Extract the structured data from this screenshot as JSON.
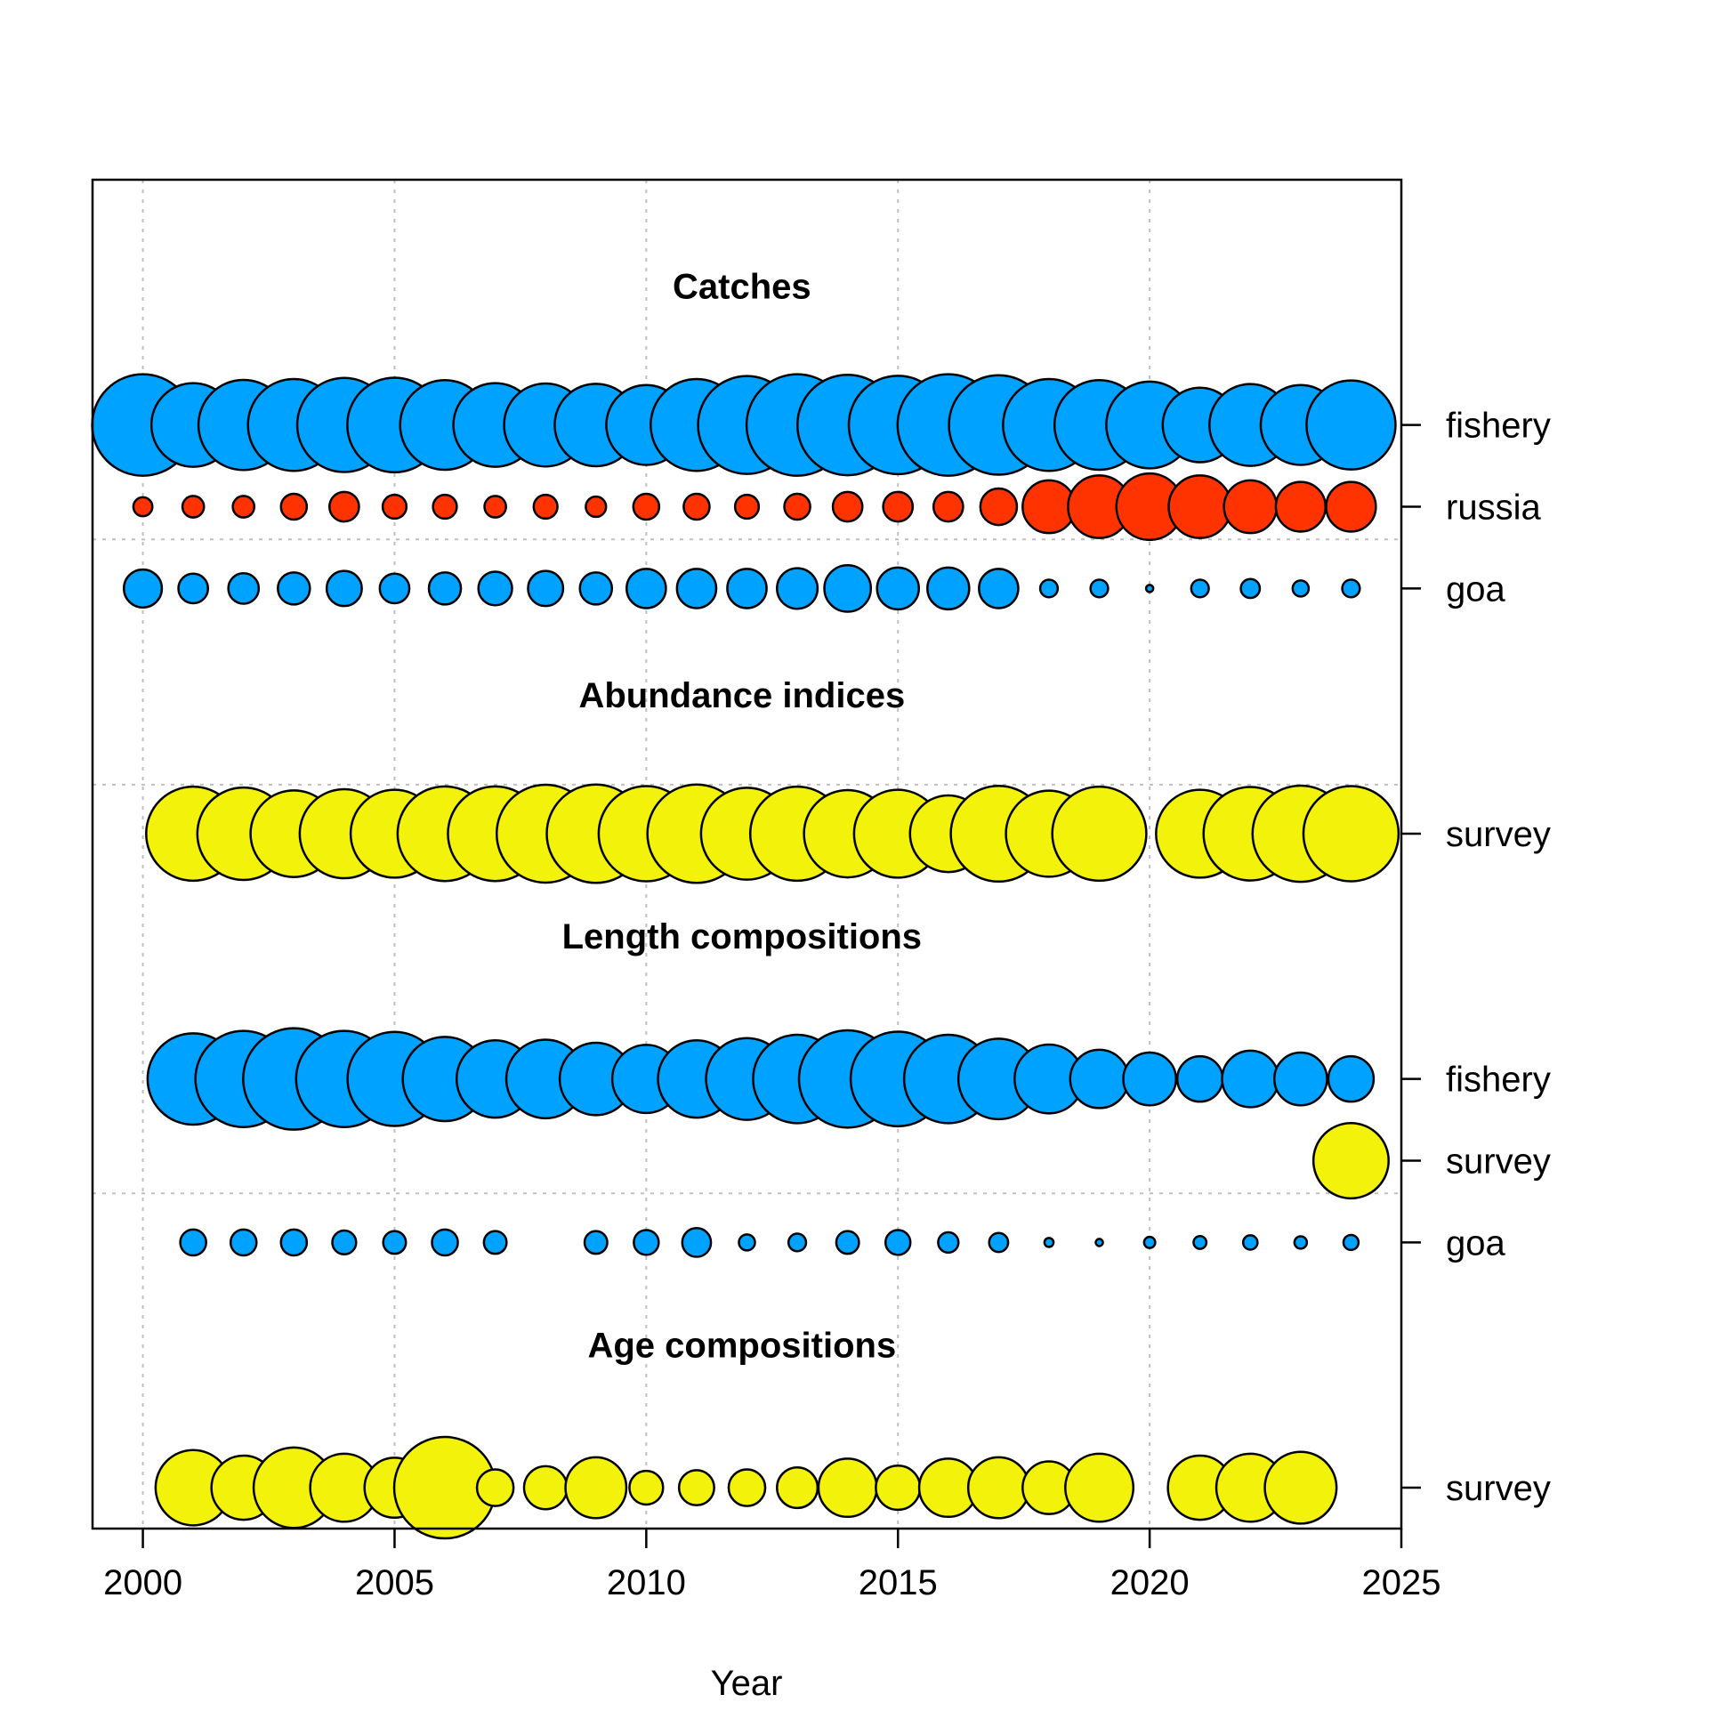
{
  "chart_data": {
    "type": "bubble",
    "xlabel": "Year",
    "xlim": [
      1999,
      2025
    ],
    "ylim": [
      0.5,
      17
    ],
    "xticks": [
      2000,
      2005,
      2010,
      2015,
      2020,
      2025
    ],
    "grid": true,
    "colors": {
      "blue": "#00a2ff",
      "red": "#ff3300",
      "yellow": "#f2f20a"
    },
    "sections": [
      {
        "title": "Catches",
        "separator_below": 12.6,
        "title_y": 15.7,
        "rows": [
          {
            "label": "fishery",
            "y": 14.0,
            "color": "blue",
            "points": [
              [
                2000,
                1.0
              ],
              [
                2001,
                0.68
              ],
              [
                2002,
                0.79
              ],
              [
                2003,
                0.82
              ],
              [
                2004,
                0.86
              ],
              [
                2005,
                0.87
              ],
              [
                2006,
                0.78
              ],
              [
                2007,
                0.68
              ],
              [
                2008,
                0.67
              ],
              [
                2009,
                0.66
              ],
              [
                2010,
                0.62
              ],
              [
                2011,
                0.82
              ],
              [
                2012,
                0.93
              ],
              [
                2013,
                1.0
              ],
              [
                2014,
                0.98
              ],
              [
                2015,
                0.94
              ],
              [
                2016,
                1.0
              ],
              [
                2017,
                0.96
              ],
              [
                2018,
                0.82
              ],
              [
                2019,
                0.78
              ],
              [
                2020,
                0.73
              ],
              [
                2021,
                0.54
              ],
              [
                2022,
                0.65
              ],
              [
                2023,
                0.62
              ],
              [
                2024,
                0.77
              ]
            ]
          },
          {
            "label": "russia",
            "y": 13.0,
            "color": "red",
            "points": [
              [
                2000,
                0.035
              ],
              [
                2001,
                0.045
              ],
              [
                2002,
                0.045
              ],
              [
                2003,
                0.065
              ],
              [
                2004,
                0.085
              ],
              [
                2005,
                0.055
              ],
              [
                2006,
                0.055
              ],
              [
                2007,
                0.045
              ],
              [
                2008,
                0.055
              ],
              [
                2009,
                0.04
              ],
              [
                2010,
                0.065
              ],
              [
                2011,
                0.065
              ],
              [
                2012,
                0.055
              ],
              [
                2013,
                0.065
              ],
              [
                2014,
                0.085
              ],
              [
                2015,
                0.085
              ],
              [
                2016,
                0.085
              ],
              [
                2017,
                0.13
              ],
              [
                2018,
                0.27
              ],
              [
                2019,
                0.38
              ],
              [
                2020,
                0.43
              ],
              [
                2021,
                0.38
              ],
              [
                2022,
                0.27
              ],
              [
                2023,
                0.24
              ],
              [
                2024,
                0.24
              ]
            ]
          },
          {
            "label": "goa",
            "y": 12.0,
            "color": "blue",
            "points": [
              [
                2000,
                0.14
              ],
              [
                2001,
                0.085
              ],
              [
                2002,
                0.09
              ],
              [
                2003,
                0.1
              ],
              [
                2004,
                0.12
              ],
              [
                2005,
                0.085
              ],
              [
                2006,
                0.1
              ],
              [
                2007,
                0.11
              ],
              [
                2008,
                0.12
              ],
              [
                2009,
                0.1
              ],
              [
                2010,
                0.15
              ],
              [
                2011,
                0.15
              ],
              [
                2012,
                0.15
              ],
              [
                2013,
                0.16
              ],
              [
                2014,
                0.21
              ],
              [
                2015,
                0.17
              ],
              [
                2016,
                0.17
              ],
              [
                2017,
                0.15
              ],
              [
                2018,
                0.03
              ],
              [
                2019,
                0.03
              ],
              [
                2020,
                0.005
              ],
              [
                2021,
                0.03
              ],
              [
                2022,
                0.035
              ],
              [
                2023,
                0.025
              ],
              [
                2024,
                0.03
              ]
            ]
          }
        ]
      },
      {
        "title": "Abundance indices",
        "separator_below": 9.6,
        "title_y": 10.7,
        "rows": [
          {
            "label": "survey",
            "y": 9.0,
            "color": "yellow",
            "points": [
              [
                2001,
                0.86
              ],
              [
                2002,
                0.83
              ],
              [
                2003,
                0.73
              ],
              [
                2004,
                0.77
              ],
              [
                2005,
                0.75
              ],
              [
                2006,
                0.87
              ],
              [
                2007,
                0.87
              ],
              [
                2008,
                0.93
              ],
              [
                2009,
                0.94
              ],
              [
                2010,
                0.88
              ],
              [
                2011,
                0.94
              ],
              [
                2012,
                0.82
              ],
              [
                2013,
                0.86
              ],
              [
                2014,
                0.74
              ],
              [
                2015,
                0.75
              ],
              [
                2016,
                0.57
              ],
              [
                2017,
                0.89
              ],
              [
                2018,
                0.72
              ],
              [
                2019,
                0.86
              ],
              [
                2021,
                0.75
              ],
              [
                2022,
                0.85
              ],
              [
                2023,
                0.9
              ],
              [
                2024,
                0.88
              ]
            ]
          }
        ]
      },
      {
        "title": "Length compositions",
        "separator_below": 4.6,
        "title_y": 7.75,
        "rows": [
          {
            "label": "fishery",
            "y": 6.0,
            "color": "blue",
            "points": [
              [
                2001,
                0.81
              ],
              [
                2002,
                0.9
              ],
              [
                2003,
                1.0
              ],
              [
                2004,
                0.9
              ],
              [
                2005,
                0.86
              ],
              [
                2006,
                0.69
              ],
              [
                2007,
                0.58
              ],
              [
                2008,
                0.6
              ],
              [
                2009,
                0.51
              ],
              [
                2010,
                0.45
              ],
              [
                2011,
                0.58
              ],
              [
                2012,
                0.65
              ],
              [
                2013,
                0.76
              ],
              [
                2014,
                0.92
              ],
              [
                2015,
                0.87
              ],
              [
                2016,
                0.76
              ],
              [
                2017,
                0.63
              ],
              [
                2018,
                0.46
              ],
              [
                2019,
                0.33
              ],
              [
                2020,
                0.27
              ],
              [
                2021,
                0.2
              ],
              [
                2022,
                0.31
              ],
              [
                2023,
                0.27
              ],
              [
                2024,
                0.2
              ]
            ]
          },
          {
            "label": "survey",
            "y": 5.0,
            "color": "yellow",
            "points": [
              [
                2024,
                0.55
              ]
            ]
          },
          {
            "label": "goa",
            "y": 4.0,
            "color": "blue",
            "points": [
              [
                2001,
                0.065
              ],
              [
                2002,
                0.065
              ],
              [
                2003,
                0.065
              ],
              [
                2004,
                0.055
              ],
              [
                2005,
                0.05
              ],
              [
                2006,
                0.065
              ],
              [
                2007,
                0.05
              ],
              [
                2009,
                0.05
              ],
              [
                2010,
                0.06
              ],
              [
                2011,
                0.08
              ],
              [
                2012,
                0.025
              ],
              [
                2013,
                0.03
              ],
              [
                2014,
                0.05
              ],
              [
                2015,
                0.06
              ],
              [
                2016,
                0.04
              ],
              [
                2017,
                0.035
              ],
              [
                2018,
                0.008
              ],
              [
                2019,
                0.005
              ],
              [
                2020,
                0.012
              ],
              [
                2021,
                0.016
              ],
              [
                2022,
                0.02
              ],
              [
                2023,
                0.015
              ],
              [
                2024,
                0.022
              ]
            ]
          }
        ]
      },
      {
        "title": "Age compositions",
        "separator_below": null,
        "title_y": 2.75,
        "rows": [
          {
            "label": "survey",
            "y": 1.0,
            "color": "yellow",
            "points": [
              [
                2001,
                0.55
              ],
              [
                2002,
                0.4
              ],
              [
                2003,
                0.63
              ],
              [
                2004,
                0.45
              ],
              [
                2005,
                0.35
              ],
              [
                2006,
                1.0
              ],
              [
                2007,
                0.13
              ],
              [
                2008,
                0.18
              ],
              [
                2009,
                0.36
              ],
              [
                2010,
                0.11
              ],
              [
                2011,
                0.12
              ],
              [
                2012,
                0.13
              ],
              [
                2013,
                0.16
              ],
              [
                2014,
                0.33
              ],
              [
                2015,
                0.19
              ],
              [
                2016,
                0.33
              ],
              [
                2017,
                0.36
              ],
              [
                2018,
                0.27
              ],
              [
                2019,
                0.45
              ],
              [
                2021,
                0.4
              ],
              [
                2022,
                0.45
              ],
              [
                2023,
                0.5
              ]
            ]
          }
        ]
      }
    ]
  }
}
